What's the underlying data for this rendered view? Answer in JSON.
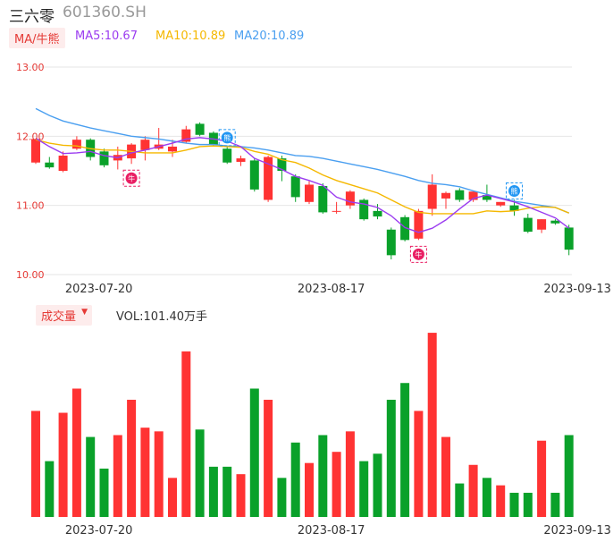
{
  "header": {
    "name": "三六零",
    "code": "601360.SH",
    "ma_tag": "MA/牛熊",
    "ma5": "MA5:10.67",
    "ma10": "MA10:10.89",
    "ma20": "MA20:10.89",
    "vol_tag": "成交量",
    "vol_value": "VOL:101.40万手"
  },
  "colors": {
    "up": "#ff3333",
    "down": "#0aa12a",
    "ma5": "#9b3cf0",
    "ma10": "#f5b800",
    "ma20": "#4a9ff0",
    "axis": "#e53935",
    "bull": "#e91e63",
    "bear": "#2196f3"
  },
  "chart_data": {
    "type": "candlestick",
    "y_ticks": [
      "13.00",
      "12.00",
      "11.00",
      "10.00"
    ],
    "ylim": [
      10.0,
      13.0
    ],
    "x_ticks": [
      {
        "label": "2023-07-20",
        "index": 2
      },
      {
        "label": "2023-08-17",
        "index": 19
      },
      {
        "label": "2023-09-13",
        "index": 37
      }
    ],
    "candles": [
      {
        "o": 11.62,
        "h": 11.96,
        "l": 11.6,
        "c": 11.96
      },
      {
        "o": 11.62,
        "h": 11.7,
        "l": 11.53,
        "c": 11.55
      },
      {
        "o": 11.5,
        "h": 11.78,
        "l": 11.48,
        "c": 11.72
      },
      {
        "o": 11.82,
        "h": 12.0,
        "l": 11.8,
        "c": 11.95
      },
      {
        "o": 11.95,
        "h": 11.97,
        "l": 11.65,
        "c": 11.7
      },
      {
        "o": 11.78,
        "h": 11.82,
        "l": 11.55,
        "c": 11.58
      },
      {
        "o": 11.65,
        "h": 11.85,
        "l": 11.52,
        "c": 11.73
      },
      {
        "o": 11.68,
        "h": 11.9,
        "l": 11.6,
        "c": 11.88
      },
      {
        "o": 11.8,
        "h": 12.0,
        "l": 11.65,
        "c": 11.95
      },
      {
        "o": 11.82,
        "h": 12.12,
        "l": 11.8,
        "c": 11.88
      },
      {
        "o": 11.78,
        "h": 11.95,
        "l": 11.7,
        "c": 11.85
      },
      {
        "o": 11.92,
        "h": 12.15,
        "l": 11.9,
        "c": 12.1
      },
      {
        "o": 12.18,
        "h": 12.2,
        "l": 12.0,
        "c": 12.02
      },
      {
        "o": 12.05,
        "h": 12.07,
        "l": 11.85,
        "c": 11.88
      },
      {
        "o": 11.82,
        "h": 11.85,
        "l": 11.6,
        "c": 11.62
      },
      {
        "o": 11.63,
        "h": 11.72,
        "l": 11.57,
        "c": 11.68
      },
      {
        "o": 11.65,
        "h": 11.68,
        "l": 11.2,
        "c": 11.23
      },
      {
        "o": 11.08,
        "h": 11.72,
        "l": 11.05,
        "c": 11.7
      },
      {
        "o": 11.68,
        "h": 11.72,
        "l": 11.35,
        "c": 11.5
      },
      {
        "o": 11.42,
        "h": 11.45,
        "l": 11.05,
        "c": 11.12
      },
      {
        "o": 11.05,
        "h": 11.35,
        "l": 11.02,
        "c": 11.3
      },
      {
        "o": 11.28,
        "h": 11.32,
        "l": 10.88,
        "c": 10.9
      },
      {
        "o": 10.92,
        "h": 11.05,
        "l": 10.88,
        "c": 10.92
      },
      {
        "o": 11.0,
        "h": 11.22,
        "l": 10.95,
        "c": 11.2
      },
      {
        "o": 11.08,
        "h": 11.1,
        "l": 10.78,
        "c": 10.8
      },
      {
        "o": 10.92,
        "h": 11.02,
        "l": 10.8,
        "c": 10.84
      },
      {
        "o": 10.65,
        "h": 10.68,
        "l": 10.22,
        "c": 10.28
      },
      {
        "o": 10.83,
        "h": 10.86,
        "l": 10.48,
        "c": 10.5
      },
      {
        "o": 10.52,
        "h": 10.95,
        "l": 10.5,
        "c": 10.92
      },
      {
        "o": 10.95,
        "h": 11.45,
        "l": 10.85,
        "c": 11.3
      },
      {
        "o": 11.1,
        "h": 11.2,
        "l": 10.95,
        "c": 11.18
      },
      {
        "o": 11.22,
        "h": 11.25,
        "l": 11.05,
        "c": 11.08
      },
      {
        "o": 11.08,
        "h": 11.2,
        "l": 11.05,
        "c": 11.2
      },
      {
        "o": 11.15,
        "h": 11.3,
        "l": 11.05,
        "c": 11.08
      },
      {
        "o": 11.0,
        "h": 11.05,
        "l": 10.98,
        "c": 11.05
      },
      {
        "o": 11.0,
        "h": 11.08,
        "l": 10.85,
        "c": 10.92
      },
      {
        "o": 10.82,
        "h": 10.88,
        "l": 10.6,
        "c": 10.62
      },
      {
        "o": 10.65,
        "h": 10.8,
        "l": 10.6,
        "c": 10.8
      },
      {
        "o": 10.78,
        "h": 10.8,
        "l": 10.72,
        "c": 10.74
      },
      {
        "o": 10.68,
        "h": 10.72,
        "l": 10.28,
        "c": 10.36
      }
    ],
    "ma5": [
      11.97,
      11.85,
      11.75,
      11.76,
      11.78,
      11.72,
      11.69,
      11.76,
      11.8,
      11.85,
      11.9,
      11.96,
      11.98,
      11.96,
      11.93,
      11.85,
      11.68,
      11.6,
      11.52,
      11.42,
      11.36,
      11.29,
      11.12,
      11.05,
      11.02,
      10.97,
      10.85,
      10.68,
      10.61,
      10.67,
      10.79,
      10.95,
      11.1,
      11.15,
      11.1,
      11.05,
      10.98,
      10.9,
      10.82,
      10.67
    ],
    "ma10": [
      11.95,
      11.9,
      11.87,
      11.86,
      11.82,
      11.8,
      11.8,
      11.78,
      11.76,
      11.76,
      11.76,
      11.8,
      11.85,
      11.86,
      11.85,
      11.84,
      11.78,
      11.74,
      11.66,
      11.62,
      11.54,
      11.44,
      11.36,
      11.3,
      11.24,
      11.18,
      11.08,
      10.98,
      10.9,
      10.88,
      10.88,
      10.88,
      10.88,
      10.92,
      10.91,
      10.92,
      10.96,
      10.98,
      10.97,
      10.89
    ],
    "ma20": [
      12.4,
      12.3,
      12.22,
      12.17,
      12.12,
      12.08,
      12.04,
      12.0,
      11.98,
      11.96,
      11.93,
      11.9,
      11.88,
      11.88,
      11.86,
      11.85,
      11.83,
      11.8,
      11.76,
      11.72,
      11.71,
      11.68,
      11.64,
      11.6,
      11.56,
      11.52,
      11.47,
      11.42,
      11.36,
      11.32,
      11.3,
      11.27,
      11.21,
      11.16,
      11.11,
      11.06,
      11.03,
      11.0,
      10.97,
      10.89
    ],
    "volume_rel": [
      0.57,
      0.3,
      0.56,
      0.69,
      0.43,
      0.26,
      0.44,
      0.63,
      0.48,
      0.46,
      0.21,
      0.89,
      0.47,
      0.27,
      0.27,
      0.23,
      0.69,
      0.63,
      0.21,
      0.4,
      0.29,
      0.44,
      0.35,
      0.46,
      0.3,
      0.34,
      0.63,
      0.72,
      0.57,
      0.99,
      0.43,
      0.18,
      0.28,
      0.21,
      0.17,
      0.13,
      0.13,
      0.41,
      0.13,
      0.44
    ],
    "markers": [
      {
        "type": "bull",
        "label": "牛",
        "index": 7
      },
      {
        "type": "bear",
        "label": "熊",
        "index": 14
      },
      {
        "type": "bull",
        "label": "牛",
        "index": 28
      },
      {
        "type": "bear",
        "label": "熊",
        "index": 35
      }
    ]
  }
}
